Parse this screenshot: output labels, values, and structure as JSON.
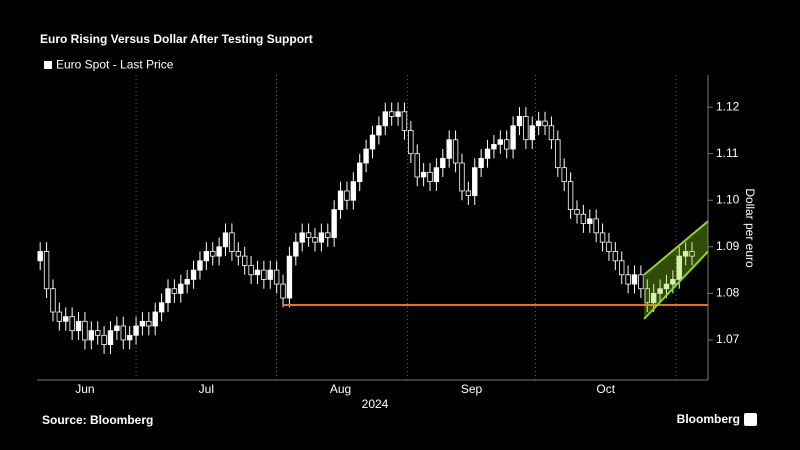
{
  "chart_data": {
    "type": "candlestick",
    "title": "Euro Rising Versus Dollar After Testing Support",
    "ylabel": "Dollar per euro",
    "xlabel": "2024",
    "source": "Source: Bloomberg",
    "brand": "Bloomberg",
    "xlim": [
      -0.5,
      104.5
    ],
    "xticks": [
      {
        "value": 7,
        "label": "Jun"
      },
      {
        "value": 26,
        "label": "Jul"
      },
      {
        "value": 47,
        "label": "Aug"
      },
      {
        "value": 67.5,
        "label": "Sep"
      },
      {
        "value": 88.5,
        "label": "Oct"
      }
    ],
    "xgrid": [
      15,
      37,
      57.5,
      77.5,
      99.5
    ],
    "ylim": [
      1.0614,
      1.1269
    ],
    "yticks": [
      1.07,
      1.08,
      1.09,
      {
        "value": 1.1,
        "label": "1.10"
      },
      1.11,
      1.12
    ],
    "series": [
      {
        "name": "Euro Spot - Last Price",
        "color": "#ffffff",
        "open": [
          1.087,
          1.089,
          1.081,
          1.076,
          1.074,
          1.075,
          1.072,
          1.074,
          1.07,
          1.072,
          1.071,
          1.069,
          1.072,
          1.073,
          1.07,
          1.071,
          1.073,
          1.074,
          1.073,
          1.076,
          1.078,
          1.081,
          1.08,
          1.082,
          1.083,
          1.085,
          1.087,
          1.089,
          1.088,
          1.09,
          1.093,
          1.089,
          1.088,
          1.086,
          1.084,
          1.085,
          1.083,
          1.085,
          1.082,
          1.079,
          1.088,
          1.091,
          1.093,
          1.092,
          1.091,
          1.093,
          1.092,
          1.098,
          1.102,
          1.1,
          1.104,
          1.108,
          1.111,
          1.114,
          1.116,
          1.119,
          1.118,
          1.119,
          1.115,
          1.11,
          1.105,
          1.106,
          1.104,
          1.107,
          1.109,
          1.113,
          1.108,
          1.102,
          1.101,
          1.107,
          1.109,
          1.111,
          1.112,
          1.113,
          1.111,
          1.116,
          1.118,
          1.113,
          1.116,
          1.117,
          1.116,
          1.113,
          1.107,
          1.104,
          1.098,
          1.097,
          1.095,
          1.096,
          1.093,
          1.091,
          1.089,
          1.087,
          1.084,
          1.082,
          1.084,
          1.081,
          1.078,
          1.08,
          1.081,
          1.082,
          1.083,
          1.088,
          1.089
        ],
        "high": [
          1.091,
          1.091,
          1.083,
          1.078,
          1.077,
          1.077,
          1.076,
          1.076,
          1.074,
          1.074,
          1.073,
          1.074,
          1.075,
          1.075,
          1.073,
          1.075,
          1.076,
          1.076,
          1.078,
          1.08,
          1.083,
          1.083,
          1.084,
          1.085,
          1.087,
          1.089,
          1.091,
          1.091,
          1.092,
          1.095,
          1.095,
          1.091,
          1.09,
          1.088,
          1.087,
          1.087,
          1.087,
          1.087,
          1.084,
          1.09,
          1.093,
          1.095,
          1.095,
          1.094,
          1.095,
          1.095,
          1.1,
          1.104,
          1.104,
          1.106,
          1.11,
          1.113,
          1.116,
          1.118,
          1.121,
          1.121,
          1.121,
          1.121,
          1.117,
          1.112,
          1.108,
          1.108,
          1.109,
          1.111,
          1.115,
          1.115,
          1.11,
          1.104,
          1.109,
          1.111,
          1.113,
          1.114,
          1.115,
          1.115,
          1.118,
          1.12,
          1.12,
          1.118,
          1.119,
          1.119,
          1.118,
          1.115,
          1.109,
          1.106,
          1.1,
          1.099,
          1.098,
          1.098,
          1.095,
          1.093,
          1.091,
          1.089,
          1.086,
          1.086,
          1.086,
          1.083,
          1.082,
          1.083,
          1.084,
          1.085,
          1.09,
          1.091,
          1.091
        ],
        "low": [
          1.085,
          1.079,
          1.074,
          1.072,
          1.072,
          1.07,
          1.07,
          1.068,
          1.068,
          1.069,
          1.067,
          1.067,
          1.07,
          1.068,
          1.068,
          1.069,
          1.071,
          1.071,
          1.071,
          1.074,
          1.076,
          1.078,
          1.078,
          1.08,
          1.081,
          1.083,
          1.085,
          1.086,
          1.086,
          1.088,
          1.087,
          1.086,
          1.084,
          1.082,
          1.082,
          1.081,
          1.081,
          1.08,
          1.077,
          1.077,
          1.086,
          1.089,
          1.09,
          1.089,
          1.089,
          1.09,
          1.09,
          1.096,
          1.098,
          1.098,
          1.102,
          1.106,
          1.109,
          1.112,
          1.114,
          1.116,
          1.116,
          1.113,
          1.108,
          1.103,
          1.103,
          1.102,
          1.102,
          1.105,
          1.107,
          1.106,
          1.1,
          1.099,
          1.099,
          1.105,
          1.107,
          1.109,
          1.11,
          1.109,
          1.109,
          1.114,
          1.111,
          1.111,
          1.114,
          1.114,
          1.111,
          1.105,
          1.102,
          1.096,
          1.095,
          1.093,
          1.093,
          1.091,
          1.089,
          1.087,
          1.085,
          1.082,
          1.08,
          1.08,
          1.079,
          1.076,
          1.076,
          1.078,
          1.079,
          1.08,
          1.081,
          1.086,
          1.086
        ],
        "close": [
          1.089,
          1.081,
          1.076,
          1.074,
          1.075,
          1.072,
          1.074,
          1.07,
          1.072,
          1.071,
          1.069,
          1.072,
          1.073,
          1.07,
          1.071,
          1.073,
          1.074,
          1.073,
          1.076,
          1.078,
          1.081,
          1.08,
          1.082,
          1.083,
          1.085,
          1.087,
          1.089,
          1.088,
          1.09,
          1.093,
          1.089,
          1.088,
          1.086,
          1.084,
          1.085,
          1.083,
          1.085,
          1.082,
          1.079,
          1.088,
          1.091,
          1.093,
          1.092,
          1.091,
          1.093,
          1.092,
          1.098,
          1.102,
          1.1,
          1.104,
          1.108,
          1.111,
          1.114,
          1.116,
          1.119,
          1.118,
          1.119,
          1.115,
          1.11,
          1.105,
          1.106,
          1.104,
          1.107,
          1.109,
          1.113,
          1.108,
          1.102,
          1.101,
          1.107,
          1.109,
          1.111,
          1.112,
          1.113,
          1.111,
          1.116,
          1.118,
          1.113,
          1.116,
          1.117,
          1.116,
          1.113,
          1.107,
          1.104,
          1.098,
          1.097,
          1.095,
          1.096,
          1.093,
          1.091,
          1.089,
          1.087,
          1.084,
          1.082,
          1.084,
          1.081,
          1.078,
          1.08,
          1.081,
          1.082,
          1.083,
          1.088,
          1.089,
          1.088
        ]
      }
    ],
    "support": {
      "value": 1.0775,
      "x": [
        38,
        104.5
      ],
      "color": "#f26b21"
    },
    "channel": {
      "x": [
        94.5,
        104.5
      ],
      "upper": [
        1.084,
        1.0955
      ],
      "lower": [
        1.0745,
        1.089
      ],
      "color": "#8ed81e"
    }
  }
}
